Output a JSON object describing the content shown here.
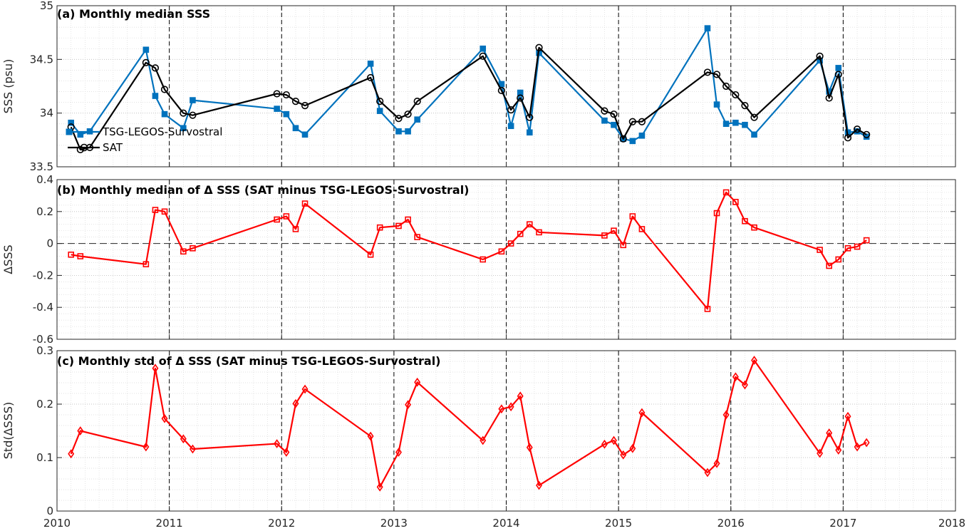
{
  "colors": {
    "tsg": "#0072BD",
    "sat": "#000000",
    "delta": "#FF0000"
  },
  "x_axis": {
    "range": [
      2010,
      2018
    ],
    "ticks": [
      2010,
      2011,
      2012,
      2013,
      2014,
      2015,
      2016,
      2017,
      2018
    ],
    "tick_labels": [
      "2010",
      "2011",
      "2012",
      "2013",
      "2014",
      "2015",
      "2016",
      "2017",
      "2018"
    ],
    "year_lines": [
      2011,
      2012,
      2013,
      2014,
      2015,
      2016,
      2017
    ]
  },
  "chart_data": [
    {
      "type": "line",
      "title": "(a) Monthly median SSS",
      "ylabel": "SSS (psu)",
      "ylim": [
        33.5,
        35
      ],
      "yticks": [
        33.5,
        34,
        34.5,
        35
      ],
      "ytick_labels": [
        "33.5",
        "34",
        "34.5",
        "35"
      ],
      "grid": true,
      "legend_position": "left",
      "x": [
        2010.125,
        2010.208,
        2010.292,
        2010.792,
        2010.875,
        2010.958,
        2011.125,
        2011.208,
        2011.958,
        2012.042,
        2012.125,
        2012.208,
        2012.792,
        2012.875,
        2013.042,
        2013.125,
        2013.208,
        2013.792,
        2013.958,
        2014.042,
        2014.125,
        2014.208,
        2014.292,
        2014.875,
        2014.958,
        2015.042,
        2015.125,
        2015.208,
        2015.792,
        2015.875,
        2015.958,
        2016.042,
        2016.125,
        2016.208,
        2016.792,
        2016.875,
        2016.958,
        2017.042,
        2017.125,
        2017.208
      ],
      "series": [
        {
          "name": "TSG-LEGOS-Survostral",
          "marker": "square",
          "values": [
            33.91,
            33.8,
            33.83,
            34.59,
            34.16,
            33.99,
            33.86,
            34.12,
            34.04,
            33.99,
            33.86,
            33.8,
            34.46,
            34.02,
            33.83,
            33.83,
            33.94,
            34.6,
            34.27,
            33.88,
            34.19,
            33.82,
            34.56,
            33.93,
            33.89,
            33.76,
            33.74,
            33.79,
            34.79,
            34.08,
            33.9,
            33.91,
            33.89,
            33.8,
            34.49,
            34.2,
            34.42,
            33.82,
            33.83,
            33.78
          ]
        },
        {
          "name": "SAT",
          "marker": "circle",
          "values": [
            33.87,
            33.66,
            33.68,
            34.47,
            34.42,
            34.22,
            34.0,
            33.98,
            34.18,
            34.17,
            34.11,
            34.07,
            34.33,
            34.11,
            33.95,
            33.99,
            34.11,
            34.53,
            34.21,
            34.03,
            34.14,
            33.96,
            34.61,
            34.02,
            33.99,
            33.76,
            33.92,
            33.92,
            34.38,
            34.36,
            34.25,
            34.17,
            34.07,
            33.96,
            34.53,
            34.14,
            34.36,
            33.77,
            33.85,
            33.8
          ]
        }
      ]
    },
    {
      "type": "line",
      "title": "(b) Monthly median of Δ SSS (SAT minus TSG-LEGOS-Survostral)",
      "ylabel": "ΔSSS",
      "ylim": [
        -0.6,
        0.4
      ],
      "yticks": [
        -0.6,
        -0.4,
        -0.2,
        0,
        0.2,
        0.4
      ],
      "ytick_labels": [
        "-0.6",
        "-0.4",
        "-0.2",
        "0",
        "0.2",
        "0.4"
      ],
      "grid": true,
      "zero_line": true,
      "x": [
        2010.125,
        2010.208,
        2010.792,
        2010.875,
        2010.958,
        2011.125,
        2011.208,
        2011.958,
        2012.042,
        2012.125,
        2012.208,
        2012.792,
        2012.875,
        2013.042,
        2013.125,
        2013.208,
        2013.792,
        2013.958,
        2014.042,
        2014.125,
        2014.208,
        2014.292,
        2014.875,
        2014.958,
        2015.042,
        2015.125,
        2015.208,
        2015.792,
        2015.875,
        2015.958,
        2016.042,
        2016.125,
        2016.208,
        2016.792,
        2016.875,
        2016.958,
        2017.042,
        2017.125,
        2017.208
      ],
      "series": [
        {
          "name": "",
          "marker": "square",
          "values": [
            -0.07,
            -0.08,
            -0.13,
            0.21,
            0.2,
            -0.05,
            -0.03,
            0.15,
            0.17,
            0.09,
            0.25,
            -0.07,
            0.1,
            0.11,
            0.15,
            0.04,
            -0.1,
            -0.05,
            0.0,
            0.06,
            0.12,
            0.07,
            0.05,
            0.08,
            -0.01,
            0.17,
            0.09,
            -0.41,
            0.19,
            0.32,
            0.26,
            0.14,
            0.1,
            -0.04,
            -0.14,
            -0.1,
            -0.03,
            -0.02,
            0.02
          ]
        }
      ]
    },
    {
      "type": "line",
      "title": "(c) Monthly std of Δ SSS (SAT minus TSG-LEGOS-Survostral)",
      "ylabel": "Std(ΔSSS)",
      "ylim": [
        0,
        0.3
      ],
      "yticks": [
        0,
        0.1,
        0.2,
        0.3
      ],
      "ytick_labels": [
        "0",
        "0.1",
        "0.2",
        "0.3"
      ],
      "grid": true,
      "x": [
        2010.125,
        2010.208,
        2010.792,
        2010.875,
        2010.958,
        2011.125,
        2011.208,
        2011.958,
        2012.042,
        2012.125,
        2012.208,
        2012.792,
        2012.875,
        2013.042,
        2013.125,
        2013.208,
        2013.792,
        2013.958,
        2014.042,
        2014.125,
        2014.208,
        2014.292,
        2014.875,
        2014.958,
        2015.042,
        2015.125,
        2015.208,
        2015.792,
        2015.875,
        2015.958,
        2016.042,
        2016.125,
        2016.208,
        2016.792,
        2016.875,
        2016.958,
        2017.042,
        2017.125,
        2017.208
      ],
      "series": [
        {
          "name": "",
          "marker": "diamond",
          "values": [
            0.107,
            0.15,
            0.12,
            0.267,
            0.173,
            0.135,
            0.116,
            0.126,
            0.11,
            0.201,
            0.228,
            0.14,
            0.045,
            0.11,
            0.199,
            0.241,
            0.132,
            0.191,
            0.195,
            0.215,
            0.119,
            0.048,
            0.125,
            0.132,
            0.105,
            0.117,
            0.184,
            0.072,
            0.089,
            0.18,
            0.251,
            0.236,
            0.282,
            0.108,
            0.146,
            0.114,
            0.177,
            0.12,
            0.128
          ]
        }
      ]
    }
  ]
}
